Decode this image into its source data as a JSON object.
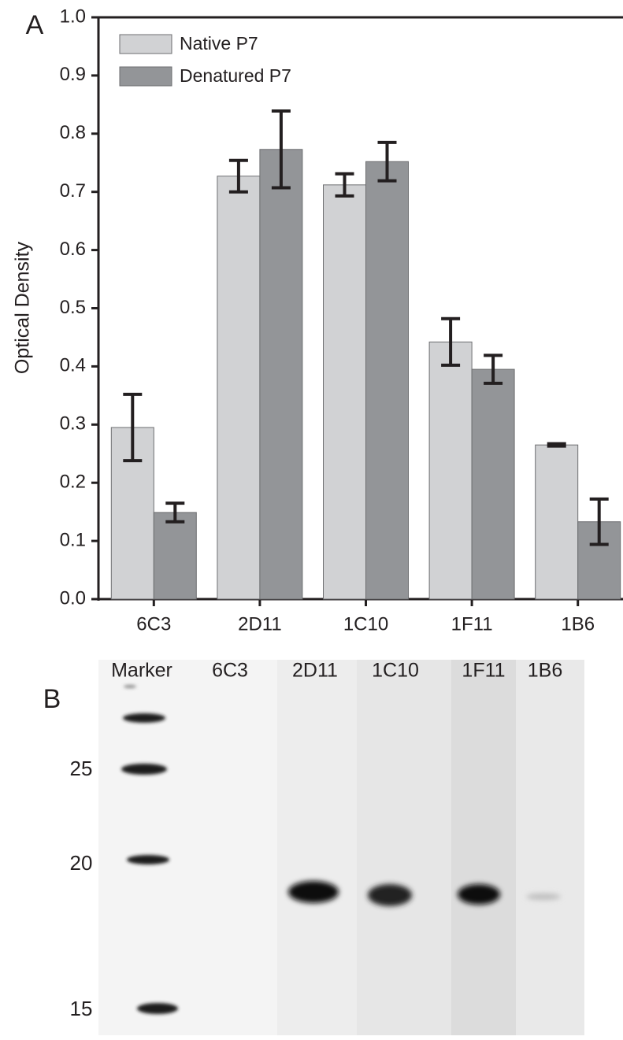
{
  "chart_data": {
    "type": "bar",
    "panel_label": "A",
    "y_label": "Optical Density",
    "categories": [
      "6C3",
      "2D11",
      "1C10",
      "1F11",
      "1B6"
    ],
    "series": [
      {
        "name": "Native P7",
        "color": "#d1d2d4",
        "values": [
          0.295,
          0.727,
          0.712,
          0.442,
          0.265
        ],
        "errors": [
          0.057,
          0.027,
          0.019,
          0.04,
          0.002
        ]
      },
      {
        "name": "Denatured P7",
        "color": "#939598",
        "values": [
          0.149,
          0.773,
          0.752,
          0.395,
          0.133
        ],
        "errors": [
          0.016,
          0.066,
          0.033,
          0.024,
          0.039
        ]
      }
    ],
    "ylim": [
      0,
      1
    ],
    "yticks": [
      {
        "value": 0,
        "label": "0.0"
      },
      0.1,
      0.2,
      0.3,
      0.4,
      0.5,
      0.6,
      0.7,
      0.8,
      0.9,
      {
        "value": 1,
        "label": "1.0"
      }
    ],
    "legend": "top-left",
    "grid": false
  },
  "blot": {
    "panel_label": "B",
    "lane_labels": [
      "Marker",
      "6C3",
      "2D11",
      "1C10",
      "1F11",
      "1B6"
    ],
    "marker_labels": [
      "25",
      "20",
      "15"
    ]
  }
}
